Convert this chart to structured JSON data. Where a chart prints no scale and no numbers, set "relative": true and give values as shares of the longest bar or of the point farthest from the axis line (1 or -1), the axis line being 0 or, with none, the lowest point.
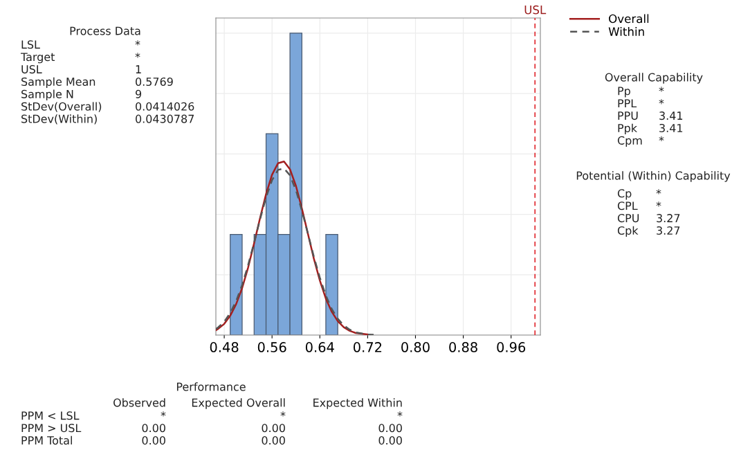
{
  "chart_data": {
    "type": "histogram",
    "relative": true,
    "bins": [
      0.49,
      0.51,
      0.53,
      0.55,
      0.57,
      0.59,
      0.61,
      0.63,
      0.65,
      0.67
    ],
    "values": [
      0.333,
      0,
      0.333,
      0.667,
      0.333,
      1,
      0,
      0,
      0.333
    ],
    "color": "#7ba6d9",
    "series": [
      {
        "name": "Overall",
        "type": "line",
        "color": "#a31f1f",
        "line_style": "solid",
        "x": [
          0.466,
          0.47,
          0.48,
          0.49,
          0.5,
          0.51,
          0.52,
          0.53,
          0.54,
          0.55,
          0.56,
          0.57,
          0.58,
          0.59,
          0.6,
          0.61,
          0.62,
          0.63,
          0.64,
          0.65,
          0.66,
          0.67,
          0.68,
          0.69,
          0.7,
          0.72
        ],
        "values": [
          0.016,
          0.021,
          0.037,
          0.064,
          0.103,
          0.156,
          0.224,
          0.304,
          0.388,
          0.467,
          0.531,
          0.569,
          0.575,
          0.549,
          0.494,
          0.419,
          0.336,
          0.253,
          0.181,
          0.121,
          0.077,
          0.046,
          0.026,
          0.014,
          0.007,
          0.002
        ]
      },
      {
        "name": "Within",
        "type": "line",
        "color": "#555555",
        "line_style": "dashed",
        "x": [
          0.466,
          0.47,
          0.48,
          0.49,
          0.5,
          0.51,
          0.52,
          0.53,
          0.54,
          0.55,
          0.56,
          0.57,
          0.58,
          0.59,
          0.6,
          0.61,
          0.62,
          0.63,
          0.64,
          0.65,
          0.66,
          0.67,
          0.68,
          0.69,
          0.7,
          0.72,
          0.73
        ],
        "values": [
          0.02,
          0.026,
          0.044,
          0.073,
          0.113,
          0.166,
          0.232,
          0.306,
          0.384,
          0.456,
          0.513,
          0.547,
          0.552,
          0.529,
          0.48,
          0.412,
          0.336,
          0.259,
          0.19,
          0.131,
          0.086,
          0.054,
          0.032,
          0.018,
          0.009,
          0.002,
          0.001
        ]
      }
    ],
    "xlim": [
      0.466,
      1.009
    ],
    "xticks": [
      0.48,
      0.56,
      0.64,
      0.72,
      {
        "value": 0.8,
        "label": "0.80"
      },
      0.88,
      0.96
    ],
    "ref_lines": [
      {
        "axis": "x",
        "value": 1,
        "label": "USL",
        "color": "#e0282e",
        "line_style": "dashed"
      }
    ],
    "grid": true,
    "legend": "top right",
    "tick_labels": "x",
    "annotations": [
      "Process Data",
      "LSL\nTarget\nUSL\nSample Mean\nSample N\nStDev(Overall)\nStDev(Within)",
      "*\n*\n1\n0.5769\n9\n0.0414026\n0.0430787",
      "Overall Capability",
      "Pp\nPPL\nPPU\nPpk\nCpm",
      "*\n*\n3.41\n3.41\n*",
      "Potential (Within) Capability",
      "Cp\nCPL\nCPU\nCpk",
      "*\n*\n3.27\n3.27",
      "Performance",
      "Observed",
      "Expected Overall",
      "Expected Within",
      "PPM < LSL\nPPM > USL\nPPM Total",
      "*\n0.00\n0.00",
      "*\n0.00\n0.00",
      "*\n0.00\n0.00"
    ]
  }
}
